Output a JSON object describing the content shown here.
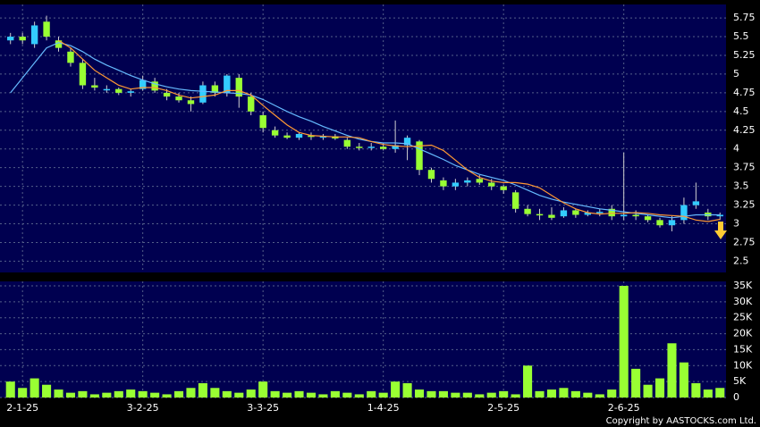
{
  "chart_data": {
    "type": "candlestick",
    "categories": [
      null,
      "2-1-25",
      null,
      null,
      null,
      null,
      null,
      null,
      null,
      null,
      null,
      "3-2-25",
      null,
      null,
      null,
      null,
      null,
      null,
      null,
      null,
      null,
      "3-3-25",
      null,
      null,
      null,
      null,
      null,
      null,
      null,
      null,
      null,
      "1-4-25",
      null,
      null,
      null,
      null,
      null,
      null,
      null,
      null,
      null,
      "2-5-25",
      null,
      null,
      null,
      null,
      null,
      null,
      null,
      null,
      null,
      "2-6-25",
      null,
      null,
      null,
      null,
      null,
      null,
      null,
      null
    ],
    "open": [
      5.45,
      5.5,
      5.4,
      5.7,
      5.45,
      5.3,
      5.15,
      4.85,
      4.8,
      4.8,
      4.75,
      4.8,
      4.9,
      4.75,
      4.7,
      4.65,
      4.62,
      4.85,
      4.75,
      4.95,
      4.7,
      4.45,
      4.25,
      4.18,
      4.15,
      4.18,
      4.15,
      4.17,
      4.12,
      4.03,
      4.02,
      4.03,
      4.0,
      4.05,
      4.1,
      3.72,
      3.58,
      3.5,
      3.55,
      3.6,
      3.55,
      3.5,
      3.42,
      3.2,
      3.13,
      3.12,
      3.1,
      3.18,
      3.12,
      3.15,
      3.2,
      3.1,
      3.12,
      3.1,
      3.05,
      2.98,
      3.05,
      3.25,
      3.15,
      3.1
    ],
    "high": [
      5.55,
      5.55,
      5.7,
      5.78,
      5.5,
      5.35,
      5.2,
      4.95,
      4.85,
      4.82,
      4.8,
      4.98,
      4.95,
      4.8,
      4.75,
      4.7,
      4.9,
      4.9,
      5.0,
      5.0,
      4.75,
      4.5,
      4.3,
      4.22,
      4.22,
      4.22,
      4.2,
      4.2,
      4.15,
      4.08,
      4.08,
      4.08,
      4.38,
      4.18,
      4.12,
      3.75,
      3.62,
      3.6,
      3.62,
      3.65,
      3.6,
      3.52,
      3.45,
      3.25,
      3.2,
      3.22,
      3.22,
      3.2,
      3.18,
      3.2,
      3.25,
      3.95,
      3.18,
      3.12,
      3.08,
      3.1,
      3.35,
      3.55,
      3.2,
      3.15
    ],
    "low": [
      5.4,
      5.4,
      5.35,
      5.45,
      5.3,
      5.1,
      4.8,
      4.78,
      4.75,
      4.72,
      4.7,
      4.78,
      4.75,
      4.65,
      4.62,
      4.5,
      4.6,
      4.7,
      4.7,
      4.55,
      4.45,
      4.22,
      4.15,
      4.13,
      4.12,
      4.12,
      4.12,
      4.12,
      4.0,
      3.98,
      3.98,
      3.98,
      3.95,
      3.85,
      3.65,
      3.55,
      3.45,
      3.45,
      3.5,
      3.52,
      3.45,
      3.4,
      3.15,
      3.1,
      3.05,
      3.05,
      3.08,
      3.08,
      3.1,
      3.1,
      3.05,
      3.05,
      3.05,
      3.02,
      2.95,
      2.9,
      3.0,
      3.2,
      3.05,
      3.05
    ],
    "close": [
      5.5,
      5.45,
      5.65,
      5.5,
      5.35,
      5.15,
      4.85,
      4.82,
      4.8,
      4.75,
      4.77,
      4.92,
      4.78,
      4.7,
      4.65,
      4.6,
      4.85,
      4.75,
      4.98,
      4.7,
      4.5,
      4.28,
      4.18,
      4.15,
      4.2,
      4.16,
      4.17,
      4.14,
      4.03,
      4.02,
      4.03,
      4.0,
      4.05,
      4.15,
      3.72,
      3.6,
      3.5,
      3.55,
      3.58,
      3.55,
      3.5,
      3.45,
      3.2,
      3.13,
      3.12,
      3.08,
      3.18,
      3.12,
      3.15,
      3.16,
      3.1,
      3.12,
      3.1,
      3.05,
      2.98,
      3.05,
      3.25,
      3.3,
      3.1,
      3.12
    ],
    "up_color": "#33ccff",
    "down_color": "#99ff33",
    "series": [
      {
        "color": "#66bbff",
        "values": [
          4.75,
          4.95,
          5.15,
          5.35,
          5.42,
          5.38,
          5.3,
          5.2,
          5.12,
          5.05,
          4.98,
          4.92,
          4.87,
          4.83,
          4.8,
          4.78,
          4.77,
          4.76,
          4.75,
          4.74,
          4.72,
          4.66,
          4.58,
          4.5,
          4.43,
          4.37,
          4.3,
          4.24,
          4.18,
          4.13,
          4.1,
          4.08,
          4.08,
          4.07,
          4.0,
          3.93,
          3.86,
          3.78,
          3.72,
          3.66,
          3.62,
          3.58,
          3.52,
          3.45,
          3.38,
          3.33,
          3.29,
          3.26,
          3.23,
          3.2,
          3.18,
          3.16,
          3.14,
          3.12,
          3.1,
          3.08,
          3.1,
          3.12,
          3.12,
          3.12
        ]
      },
      {
        "color": "#ff9933",
        "values": [
          null,
          null,
          null,
          null,
          5.45,
          5.35,
          5.2,
          5.05,
          4.95,
          4.85,
          4.8,
          4.82,
          4.82,
          4.78,
          4.72,
          4.68,
          4.7,
          4.72,
          4.78,
          4.78,
          4.72,
          4.58,
          4.45,
          4.32,
          4.22,
          4.18,
          4.17,
          4.16,
          4.16,
          4.15,
          4.1,
          4.06,
          4.04,
          4.03,
          4.04,
          4.05,
          3.98,
          3.85,
          3.72,
          3.62,
          3.57,
          3.55,
          3.55,
          3.53,
          3.48,
          3.38,
          3.28,
          3.2,
          3.15,
          3.13,
          3.14,
          3.14,
          3.15,
          3.14,
          3.12,
          3.11,
          3.1,
          3.05,
          3.03,
          3.06
        ]
      }
    ],
    "ylim": [
      2.35,
      5.93
    ],
    "yticks": [
      2.5,
      2.75,
      3,
      3.25,
      3.5,
      3.75,
      4,
      4.25,
      4.5,
      4.75,
      5,
      5.25,
      5.5,
      5.75
    ],
    "grid": true,
    "volume": {
      "type": "bar",
      "color": "#99ff33",
      "values": [
        5000,
        3000,
        6000,
        4000,
        2500,
        1500,
        2000,
        1000,
        1500,
        2000,
        2500,
        2000,
        1500,
        1000,
        2000,
        3000,
        4500,
        3000,
        2000,
        1500,
        2500,
        5000,
        2000,
        1500,
        2000,
        1500,
        1000,
        2000,
        1500,
        1000,
        2000,
        1500,
        5000,
        4500,
        2500,
        2000,
        2000,
        1500,
        1500,
        1000,
        1500,
        2000,
        1000,
        10000,
        2000,
        2500,
        3000,
        2000,
        1500,
        1000,
        2500,
        35000,
        9000,
        4000,
        6000,
        17000,
        11000,
        4500,
        2500,
        3000
      ],
      "ylim": [
        0,
        36400
      ],
      "yticks": [
        0,
        {
          "value": 5000,
          "label": "5K"
        },
        {
          "value": 10000,
          "label": "10K"
        },
        {
          "value": 15000,
          "label": "15K"
        },
        {
          "value": 20000,
          "label": "20K"
        },
        {
          "value": 25000,
          "label": "25K"
        },
        {
          "value": 30000,
          "label": "30K"
        },
        {
          "value": 35000,
          "label": "35K"
        }
      ]
    },
    "copyright": "Copyright by AASTOCKS.com Ltd."
  }
}
